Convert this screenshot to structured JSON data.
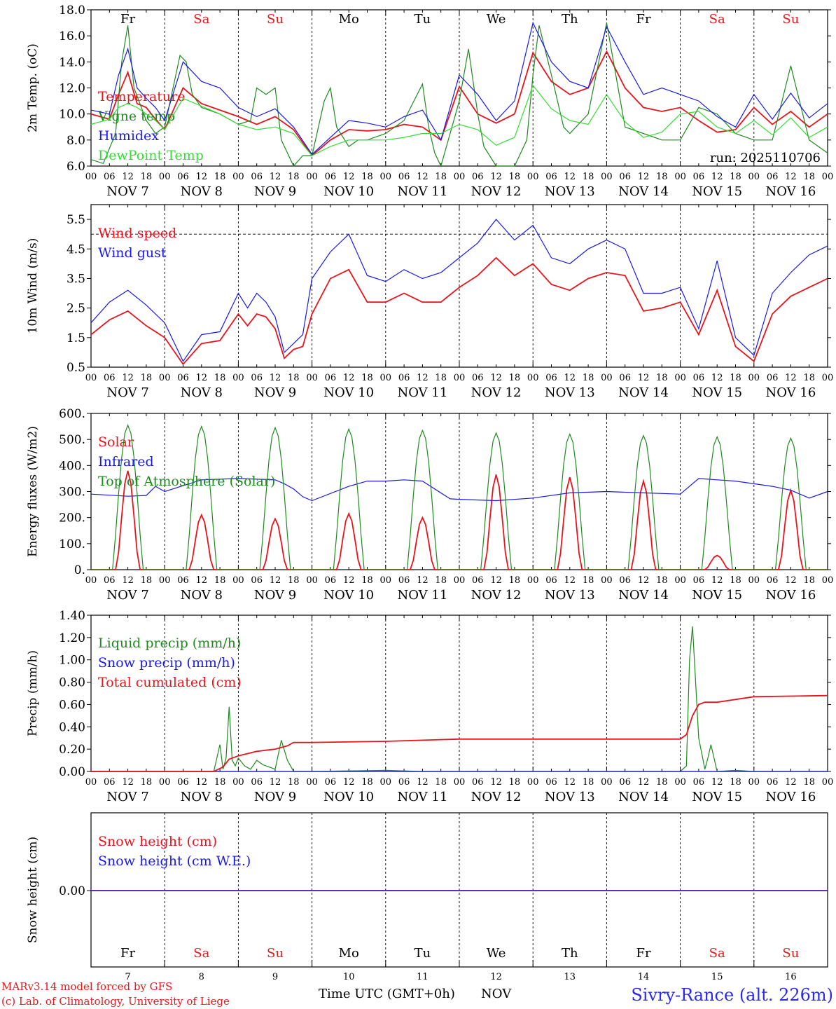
{
  "footer": {
    "model_line": "MARv3.14 model forced by GFS",
    "copyright_line": "(c) Lab. of Climatology, University of Liege",
    "xlabel": "Time UTC (GMT+0h)",
    "month": "NOV",
    "station": "Sivry-Rance (alt. 226m)",
    "run": "run: 2025110706"
  },
  "chart_data": [
    {
      "id": "temp",
      "type": "line",
      "ylabel": "2m Temp. (oC)",
      "ylim": [
        6,
        18
      ],
      "yticks": [
        "6.0",
        "8.0",
        "10.0",
        "12.0",
        "14.0",
        "16.0",
        "18.0"
      ],
      "day_names": [
        "Fr",
        "Sa",
        "Su",
        "Mo",
        "Tu",
        "We",
        "Th",
        "Fr",
        "Sa",
        "Su"
      ],
      "weekend_color": "#e31a1c",
      "x_hour_ticks": [
        "00",
        "06",
        "12",
        "18"
      ],
      "date_labels": [
        "NOV 7",
        "NOV 8",
        "NOV 9",
        "NOV 10",
        "NOV 11",
        "NOV 12",
        "NOV 13",
        "NOV 14",
        "NOV 15",
        "NOV 16"
      ],
      "x_unit": "hours since 2025-11-07 00 UTC",
      "series": [
        {
          "name": "Temperature",
          "color": "#e8141c",
          "x": [
            0,
            6,
            9,
            12,
            15,
            18,
            21,
            24,
            30,
            36,
            42,
            48,
            54,
            60,
            66,
            72,
            78,
            84,
            90,
            96,
            102,
            108,
            114,
            120,
            126,
            132,
            138,
            144,
            150,
            156,
            162,
            168,
            174,
            180,
            186,
            192,
            198,
            204,
            210,
            216,
            222,
            228,
            234,
            240
          ],
          "y": [
            10,
            9.6,
            11.5,
            13.2,
            10.8,
            10.5,
            9.6,
            8.8,
            12,
            10.8,
            10.3,
            9.8,
            9.2,
            9.8,
            8.8,
            6.8,
            8,
            8.8,
            8.7,
            8.8,
            9.2,
            9,
            8,
            12.1,
            10,
            9.3,
            10,
            14.7,
            12.5,
            11.5,
            12,
            14.8,
            12,
            10.5,
            10.2,
            10.5,
            9.5,
            8.6,
            8.8,
            10.5,
            9.2,
            10.2,
            9,
            10
          ]
        },
        {
          "name": "Vigne temp",
          "color": "#1f8a1f",
          "x": [
            0,
            4,
            8,
            10,
            12,
            14,
            18,
            21,
            24,
            29,
            31,
            33,
            36,
            42,
            48,
            52,
            54,
            57,
            60,
            62,
            66,
            69,
            72,
            76,
            78,
            80,
            84,
            87,
            90,
            96,
            102,
            108,
            110,
            112,
            114,
            120,
            123,
            126,
            128,
            132,
            138,
            142,
            144,
            146,
            150,
            154,
            156,
            162,
            168,
            171,
            174,
            180,
            186,
            192,
            198,
            204,
            210,
            216,
            222,
            228,
            234,
            240
          ],
          "y": [
            6.5,
            6.2,
            8.5,
            14,
            16.8,
            12,
            9.5,
            8.5,
            9,
            14.5,
            14,
            11.5,
            10.5,
            10,
            9.2,
            9.5,
            12,
            11.5,
            12,
            8,
            5.5,
            6.8,
            6.8,
            11,
            12,
            9,
            7.5,
            8,
            8,
            8.5,
            9.5,
            12.3,
            9,
            7,
            5.5,
            11,
            15,
            10,
            7.5,
            5.5,
            5.5,
            8,
            13,
            16.8,
            13,
            9,
            8.5,
            10,
            17,
            13,
            9,
            8.5,
            8,
            8,
            10.5,
            10,
            8.5,
            8,
            8,
            13.7,
            8,
            7
          ]
        },
        {
          "name": "Humidex",
          "color": "#1a1ae8",
          "x": [
            0,
            6,
            9,
            12,
            15,
            18,
            21,
            24,
            30,
            36,
            42,
            48,
            54,
            60,
            66,
            72,
            78,
            84,
            90,
            96,
            102,
            108,
            114,
            120,
            126,
            132,
            138,
            144,
            150,
            156,
            162,
            168,
            174,
            180,
            186,
            192,
            198,
            204,
            210,
            216,
            222,
            228,
            234,
            240
          ],
          "y": [
            10.3,
            10,
            13,
            15,
            12,
            11.2,
            10.5,
            9.5,
            14,
            12.5,
            12,
            10.5,
            9.8,
            10.4,
            9,
            6.9,
            8.2,
            9.5,
            9.3,
            9,
            9.8,
            10.3,
            8,
            13,
            11.5,
            9.5,
            11,
            17,
            14,
            12.5,
            12,
            16.7,
            14,
            11.5,
            12,
            11.5,
            11,
            9.8,
            9,
            11.5,
            9.6,
            11.6,
            9.7,
            10.8
          ]
        },
        {
          "name": "DewPoint Temp",
          "color": "#33dd33",
          "x": [
            0,
            6,
            9,
            12,
            15,
            18,
            21,
            24,
            30,
            36,
            42,
            48,
            54,
            60,
            66,
            72,
            78,
            84,
            90,
            96,
            102,
            108,
            114,
            120,
            126,
            132,
            138,
            144,
            150,
            156,
            162,
            168,
            174,
            180,
            186,
            192,
            198,
            204,
            210,
            216,
            222,
            228,
            234,
            240
          ],
          "y": [
            9.2,
            9.6,
            10.5,
            10.8,
            10.5,
            10,
            9.5,
            8.8,
            11.2,
            10.6,
            10,
            9.2,
            8.8,
            9,
            8.5,
            6.8,
            7.5,
            8,
            8,
            8,
            8.2,
            8.5,
            8.5,
            9.2,
            8.8,
            7.6,
            8.2,
            12.2,
            10.4,
            9.5,
            9.2,
            11.5,
            9.4,
            8.2,
            8.6,
            10,
            10.2,
            9,
            8.5,
            9.5,
            8.4,
            9.7,
            8.2,
            9
          ]
        }
      ]
    },
    {
      "id": "wind",
      "type": "line",
      "ylabel": "10m Wind (m/s)",
      "ylim": [
        0.5,
        6
      ],
      "yticks": [
        "0.5",
        "1.5",
        "2.5",
        "3.5",
        "4.5",
        "5.5"
      ],
      "reference_line": 5,
      "x_hour_ticks": [
        "00",
        "06",
        "12",
        "18"
      ],
      "date_labels": [
        "NOV 7",
        "NOV 8",
        "NOV 9",
        "NOV 10",
        "NOV 11",
        "NOV 12",
        "NOV 13",
        "NOV 14",
        "NOV 15",
        "NOV 16"
      ],
      "series": [
        {
          "name": "Wind speed",
          "color": "#e8141c",
          "x": [
            0,
            6,
            12,
            18,
            24,
            30,
            36,
            42,
            48,
            51,
            54,
            57,
            60,
            63,
            66,
            69,
            72,
            78,
            84,
            90,
            96,
            102,
            108,
            114,
            120,
            126,
            132,
            138,
            144,
            150,
            156,
            162,
            168,
            174,
            180,
            186,
            192,
            198,
            204,
            210,
            216,
            222,
            228,
            234,
            240
          ],
          "y": [
            1.6,
            2.1,
            2.4,
            1.9,
            1.5,
            0.6,
            1.3,
            1.4,
            2.3,
            1.9,
            2.3,
            2.2,
            1.8,
            0.8,
            1.1,
            1.2,
            2.3,
            3.5,
            3.8,
            2.7,
            2.7,
            3,
            2.7,
            2.7,
            3.2,
            3.6,
            4.2,
            3.6,
            4,
            3.3,
            3.1,
            3.5,
            3.7,
            3.6,
            2.4,
            2.5,
            2.7,
            1.6,
            3.1,
            1.2,
            0.7,
            2.3,
            2.9,
            3.2,
            3.5
          ]
        },
        {
          "name": "Wind gust",
          "color": "#1a1ae8",
          "x": [
            0,
            6,
            12,
            18,
            24,
            30,
            36,
            42,
            48,
            51,
            54,
            57,
            60,
            63,
            66,
            69,
            72,
            78,
            84,
            90,
            96,
            102,
            108,
            114,
            120,
            126,
            132,
            138,
            144,
            150,
            156,
            162,
            168,
            174,
            180,
            186,
            192,
            198,
            204,
            210,
            216,
            222,
            228,
            234,
            240
          ],
          "y": [
            2,
            2.7,
            3.1,
            2.6,
            2,
            0.7,
            1.6,
            1.7,
            3,
            2.5,
            3,
            2.7,
            2.2,
            1,
            1.3,
            1.6,
            3.5,
            4.4,
            5,
            3.6,
            3.4,
            3.8,
            3.5,
            3.7,
            4.2,
            4.7,
            5.5,
            4.8,
            5.3,
            4.2,
            4,
            4.5,
            4.8,
            4.5,
            3,
            3,
            3.2,
            1.8,
            4.1,
            1.5,
            0.9,
            3,
            3.7,
            4.3,
            4.6
          ]
        }
      ]
    },
    {
      "id": "energy",
      "type": "line",
      "ylabel": "Energy fluxes (W/m2)",
      "ylim": [
        0,
        600
      ],
      "yticks": [
        "0.",
        "100.",
        "200.",
        "300.",
        "400.",
        "500.",
        "600."
      ],
      "x_hour_ticks": [
        "00",
        "06",
        "12",
        "18"
      ],
      "date_labels": [
        "NOV 7",
        "NOV 8",
        "NOV 9",
        "NOV 10",
        "NOV 11",
        "NOV 12",
        "NOV 13",
        "NOV 14",
        "NOV 15",
        "NOV 16"
      ],
      "series": [
        {
          "name": "Solar",
          "color": "#e8141c",
          "daily_peaks": [
            380,
            210,
            195,
            215,
            200,
            365,
            355,
            340,
            55,
            305
          ]
        },
        {
          "name": "Infrared",
          "color": "#1a1ae8",
          "x": [
            0,
            12,
            18,
            21,
            24,
            36,
            48,
            60,
            63,
            66,
            69,
            72,
            84,
            90,
            96,
            102,
            108,
            117,
            120,
            132,
            144,
            156,
            168,
            180,
            192,
            198,
            204,
            210,
            216,
            222,
            228,
            234,
            240
          ],
          "y": [
            290,
            282,
            285,
            320,
            300,
            345,
            350,
            345,
            330,
            310,
            280,
            265,
            320,
            340,
            340,
            345,
            340,
            272,
            270,
            265,
            275,
            295,
            300,
            295,
            290,
            350,
            345,
            340,
            330,
            320,
            305,
            275,
            300
          ]
        },
        {
          "name": "Top of Atmosphere (Solar)",
          "color": "#1f8a1f",
          "daily_peaks": [
            555,
            550,
            545,
            540,
            535,
            525,
            520,
            515,
            510,
            505
          ]
        }
      ]
    },
    {
      "id": "precip",
      "type": "line",
      "ylabel": "Precip (mm/h)",
      "ylim": [
        0,
        1.4
      ],
      "yticks": [
        "0.00",
        "0.20",
        "0.40",
        "0.60",
        "0.80",
        "1.00",
        "1.20",
        "1.40"
      ],
      "x_hour_ticks": [
        "00",
        "06",
        "12",
        "18"
      ],
      "date_labels": [
        "NOV 7",
        "NOV 8",
        "NOV 9",
        "NOV 10",
        "NOV 11",
        "NOV 12",
        "NOV 13",
        "NOV 14",
        "NOV 15",
        "NOV 16"
      ],
      "series": [
        {
          "name": "Liquid precip (mm/h)",
          "color": "#1f8a1f",
          "x": [
            0,
            40,
            42,
            43,
            44,
            45,
            46,
            47,
            48,
            50,
            52,
            54,
            56,
            58,
            60,
            62,
            64,
            66,
            72,
            96,
            108,
            120,
            192,
            194,
            195,
            196,
            198,
            200,
            201,
            202,
            204,
            210,
            216,
            240
          ],
          "y": [
            0,
            0,
            0.24,
            0.02,
            0.12,
            0.58,
            0.1,
            0.05,
            0.12,
            0.05,
            0.02,
            0.1,
            0.06,
            0.04,
            0.02,
            0.28,
            0.1,
            0,
            0,
            0.01,
            0,
            0,
            0,
            0.05,
            1,
            1.3,
            0.3,
            0.02,
            0.12,
            0.24,
            0,
            0.01,
            0,
            0
          ]
        },
        {
          "name": "Snow precip (mm/h)",
          "color": "#1a1ae8",
          "x": [
            0,
            240
          ],
          "y": [
            0,
            0
          ]
        },
        {
          "name": "Total cumulated (cm)",
          "color": "#e8141c",
          "x": [
            0,
            40,
            43,
            45,
            48,
            54,
            60,
            64,
            66,
            72,
            96,
            120,
            144,
            168,
            192,
            194,
            196,
            198,
            200,
            204,
            216,
            240
          ],
          "y": [
            0,
            0,
            0.04,
            0.11,
            0.14,
            0.18,
            0.2,
            0.23,
            0.26,
            0.26,
            0.27,
            0.29,
            0.29,
            0.29,
            0.29,
            0.33,
            0.5,
            0.6,
            0.62,
            0.62,
            0.67,
            0.68
          ]
        }
      ]
    },
    {
      "id": "snow",
      "type": "line",
      "ylabel": "Snow height (cm)",
      "yticks": [
        "0.00"
      ],
      "day_names": [
        "Fr",
        "Sa",
        "Su",
        "Mo",
        "Tu",
        "We",
        "Th",
        "Fr",
        "Sa",
        "Su"
      ],
      "day_numbers": [
        "7",
        "8",
        "9",
        "10",
        "11",
        "12",
        "13",
        "14",
        "15",
        "16"
      ],
      "series": [
        {
          "name": "Snow height (cm)",
          "color": "#e8141c",
          "x": [
            0,
            240
          ],
          "y": [
            0,
            0
          ]
        },
        {
          "name": "Snow height (cm W.E.)",
          "color": "#1a1ae8",
          "x": [
            0,
            240
          ],
          "y": [
            0,
            0
          ]
        }
      ]
    }
  ]
}
